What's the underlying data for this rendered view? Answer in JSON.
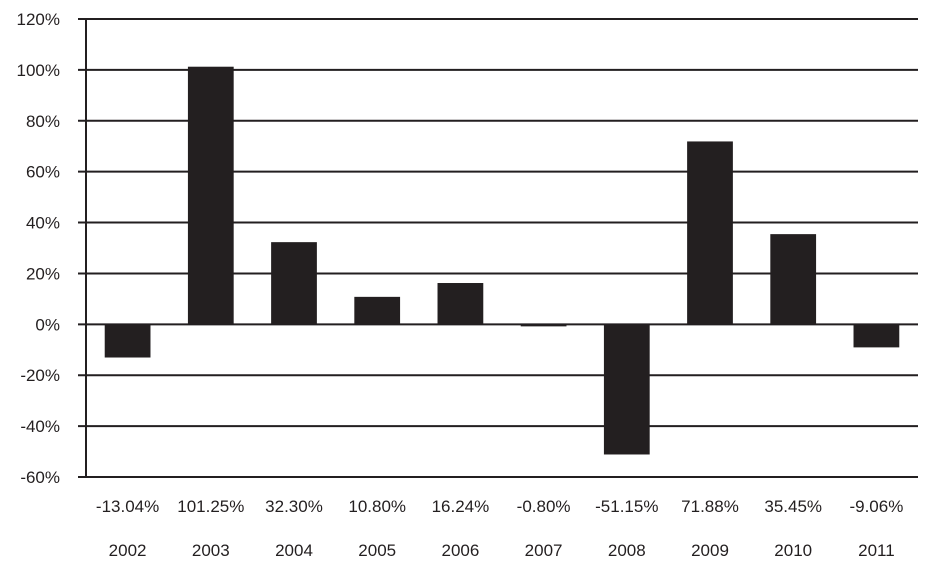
{
  "chart_data": {
    "type": "bar",
    "categories": [
      "2002",
      "2003",
      "2004",
      "2005",
      "2006",
      "2007",
      "2008",
      "2009",
      "2010",
      "2011"
    ],
    "values": [
      -13.04,
      101.25,
      32.3,
      10.8,
      16.24,
      -0.8,
      -51.15,
      71.88,
      35.45,
      -9.06
    ],
    "value_labels": [
      "-13.04%",
      "101.25%",
      "32.30%",
      "10.80%",
      "16.24%",
      "-0.80%",
      "-51.15%",
      "71.88%",
      "35.45%",
      "-9.06%"
    ],
    "title": "",
    "xlabel": "",
    "ylabel": "",
    "ylim": [
      -60,
      120
    ],
    "yticks": [
      -60,
      -40,
      -20,
      0,
      20,
      40,
      60,
      80,
      100,
      120
    ],
    "ytick_labels": [
      "-60%",
      "-40%",
      "-20%",
      "0%",
      "20%",
      "40%",
      "60%",
      "80%",
      "100%",
      "120%"
    ],
    "grid": true,
    "legend": "none",
    "bar_color": "#231f20",
    "grid_color": "#231f20"
  }
}
